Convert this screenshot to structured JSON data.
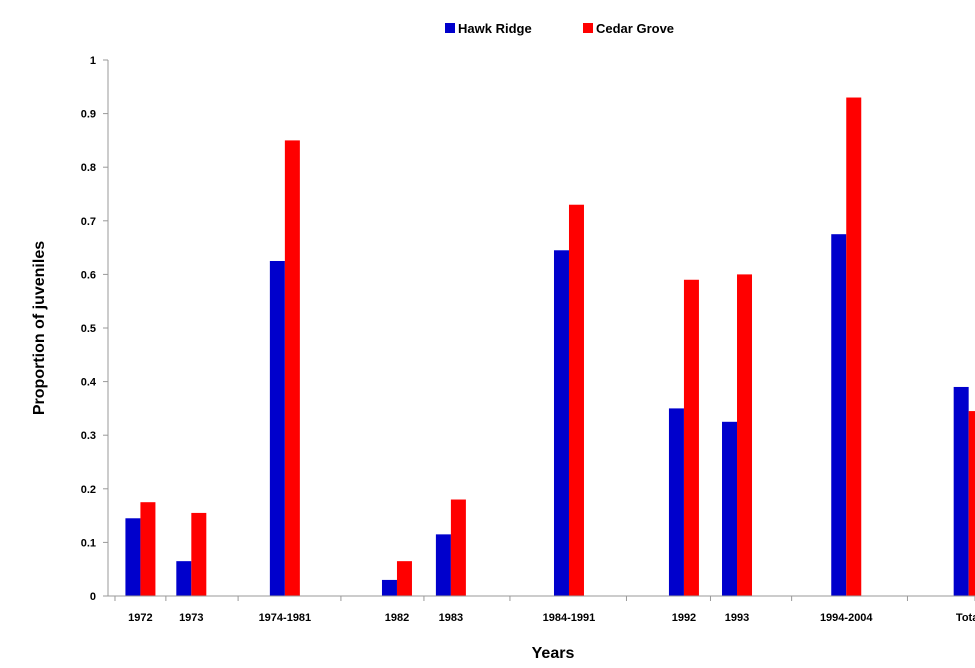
{
  "chart_data": {
    "type": "bar",
    "title": "",
    "xlabel": "Years",
    "ylabel": "Proportion of juveniles",
    "ylim": [
      0,
      1
    ],
    "yticks": [
      0,
      0.1,
      0.2,
      0.3,
      0.4,
      0.5,
      0.6,
      0.7,
      0.8,
      0.9,
      1
    ],
    "ytick_labels": [
      "0",
      "0.1",
      "0.2",
      "0.3",
      "0.4",
      "0.5",
      "0.6",
      "0.7",
      "0.8",
      "0.9",
      "1"
    ],
    "categories": [
      "1972",
      "1973",
      "1974-1981",
      "1982",
      "1983",
      "1984-1991",
      "1992",
      "1993",
      "1994-2004",
      "Total"
    ],
    "series": [
      {
        "name": "Hawk Ridge",
        "color": "#0000cc",
        "values": [
          0.145,
          0.065,
          0.625,
          0.03,
          0.115,
          0.645,
          0.35,
          0.325,
          0.675,
          0.39
        ]
      },
      {
        "name": "Cedar Grove",
        "color": "#ff0000",
        "values": [
          0.175,
          0.155,
          0.85,
          0.065,
          0.18,
          0.73,
          0.59,
          0.6,
          0.93,
          0.345
        ]
      }
    ],
    "legend_position": "top-center",
    "grid": false
  }
}
